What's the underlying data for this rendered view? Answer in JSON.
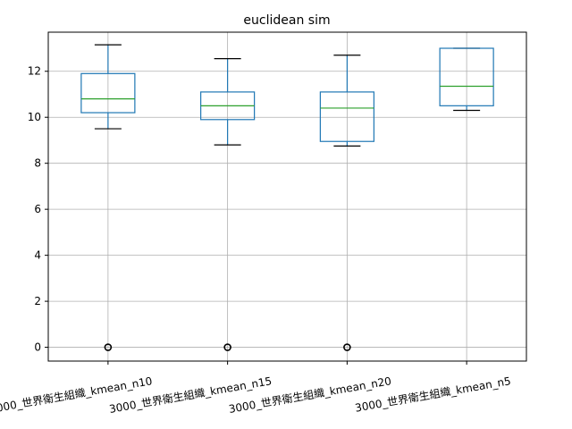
{
  "chart_data": {
    "type": "box",
    "title": "euclidean sim",
    "xlabel": "",
    "ylabel": "",
    "ylim": [
      -0.6,
      13.7
    ],
    "yticks": [
      0,
      2,
      4,
      6,
      8,
      10,
      12
    ],
    "grid": true,
    "categories": [
      "3000_世界衛生組織_kmean_n10",
      "3000_世界衛生組織_kmean_n15",
      "3000_世界衛生組織_kmean_n20",
      "3000_世界衛生組織_kmean_n5"
    ],
    "boxes": [
      {
        "whisker_low": 9.5,
        "q1": 10.2,
        "median": 10.8,
        "q3": 11.9,
        "whisker_high": 13.15,
        "outliers": [
          0
        ]
      },
      {
        "whisker_low": 8.8,
        "q1": 9.9,
        "median": 10.5,
        "q3": 11.1,
        "whisker_high": 12.55,
        "outliers": [
          0
        ]
      },
      {
        "whisker_low": 8.75,
        "q1": 8.95,
        "median": 10.4,
        "q3": 11.1,
        "whisker_high": 12.7,
        "outliers": [
          0
        ]
      },
      {
        "whisker_low": 10.3,
        "q1": 10.5,
        "median": 11.35,
        "q3": 13.0,
        "whisker_high": 13.0,
        "outliers": []
      }
    ],
    "colors": {
      "box": "#1f77b4",
      "median": "#2ca02c",
      "whisker": "#1f77b4",
      "cap": "#000000",
      "outlier": "#000000",
      "grid": "#b0b0b0"
    }
  }
}
